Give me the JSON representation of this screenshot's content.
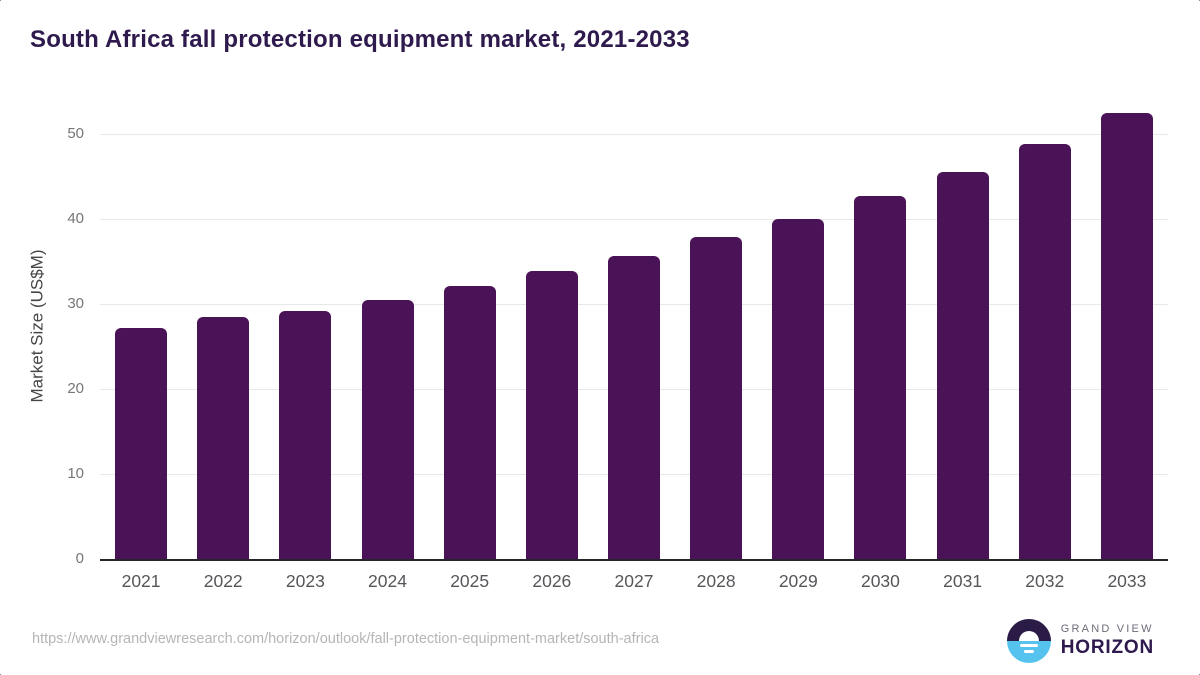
{
  "chart_data": {
    "type": "bar",
    "title": "South Africa fall protection equipment market, 2021-2033",
    "categories": [
      "2021",
      "2022",
      "2023",
      "2024",
      "2025",
      "2026",
      "2027",
      "2028",
      "2029",
      "2030",
      "2031",
      "2032",
      "2033"
    ],
    "values": [
      27.2,
      28.5,
      29.2,
      30.5,
      32.1,
      33.9,
      35.7,
      37.9,
      40.1,
      42.8,
      45.6,
      48.9,
      52.5
    ],
    "xlabel": "",
    "ylabel": "Market Size (US$M)",
    "ylim": [
      0,
      55
    ],
    "yticks": [
      0,
      10,
      20,
      30,
      40,
      50
    ],
    "grid": true,
    "legend_position": "none"
  },
  "footer": {
    "source_url": "https://www.grandviewresearch.com/horizon/outlook/fall-protection-equipment-market/south-africa",
    "logo": {
      "top_text": "GRAND VIEW",
      "bottom_text": "HORIZON"
    }
  },
  "colors": {
    "bar": "#4a1257",
    "title": "#2e1a4d",
    "logo_dark": "#2b1b47",
    "logo_blue": "#55c3ee",
    "gridline": "#e8e8e8",
    "axis_line": "#26262a"
  }
}
